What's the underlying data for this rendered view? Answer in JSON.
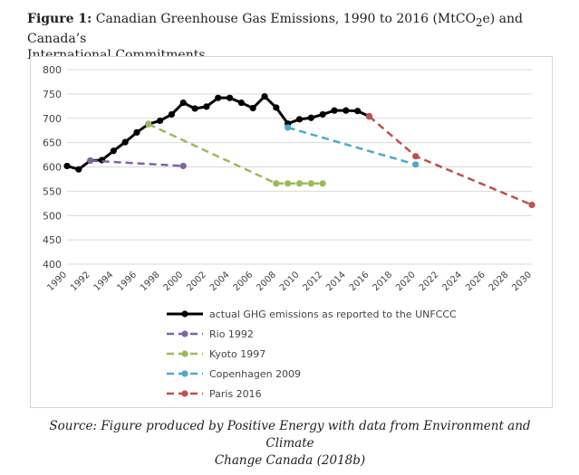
{
  "figure": {
    "label": "Figure 1:",
    "title_pre": "Canadian Greenhouse Gas Emissions, 1990 to 2016 (MtCO",
    "title_sub": "2",
    "title_post": "e) and Canada’s",
    "title_line2": "International Commitments"
  },
  "source_line1": "Source: Figure produced by Positive Energy with data from Environment and Climate",
  "source_line2": "Change Canada (2018b)",
  "chart_data": {
    "type": "line",
    "title": "Canadian Greenhouse Gas Emissions, 1990 to 2016 (MtCO2e) and Canada’s International Commitments",
    "xlabel": "",
    "ylabel": "",
    "xlim": [
      1990,
      2030
    ],
    "ylim": [
      400,
      800
    ],
    "x_ticks": [
      "1990",
      "1992",
      "1994",
      "1996",
      "1998",
      "2000",
      "2002",
      "2004",
      "2006",
      "2008",
      "2010",
      "2012",
      "2014",
      "2016",
      "2018",
      "2020",
      "2022",
      "2024",
      "2026",
      "2028",
      "2030"
    ],
    "y_ticks": [
      "800",
      "750",
      "700",
      "650",
      "600",
      "550",
      "500",
      "450",
      "400"
    ],
    "legend_position": "bottom-center",
    "series": [
      {
        "name": "actual GHG emissions as reported to the UNFCCC",
        "color": "#000000",
        "dash": "solid",
        "line_width": 3,
        "x": [
          1990,
          1991,
          1992,
          1993,
          1994,
          1995,
          1996,
          1997,
          1998,
          1999,
          2000,
          2001,
          2002,
          2003,
          2004,
          2005,
          2006,
          2007,
          2008,
          2009,
          2010,
          2011,
          2012,
          2013,
          2014,
          2015,
          2016
        ],
        "values": [
          602,
          595,
          613,
          614,
          633,
          651,
          671,
          688,
          695,
          708,
          732,
          720,
          724,
          742,
          742,
          732,
          721,
          745,
          722,
          689,
          698,
          701,
          708,
          716,
          716,
          715,
          704
        ]
      },
      {
        "name": "Rio 1992",
        "color": "#8064a2",
        "dash": "dashed",
        "line_width": 2.5,
        "x": [
          1992,
          2000
        ],
        "values": [
          613,
          602
        ]
      },
      {
        "name": "Kyoto 1997",
        "color": "#9bbb59",
        "dash": "dashed",
        "line_width": 2.5,
        "x": [
          1997,
          2008,
          2009,
          2010,
          2011,
          2012
        ],
        "values": [
          688,
          566,
          566,
          566,
          566,
          566
        ]
      },
      {
        "name": "Copenhagen 2009",
        "color": "#4bacc6",
        "dash": "dashed",
        "line_width": 2.5,
        "x": [
          2009,
          2020
        ],
        "values": [
          681,
          605
        ]
      },
      {
        "name": "Paris 2016",
        "color": "#c0504d",
        "dash": "dashed",
        "line_width": 2.5,
        "x": [
          2016,
          2020,
          2030
        ],
        "values": [
          704,
          622,
          522
        ]
      }
    ]
  }
}
